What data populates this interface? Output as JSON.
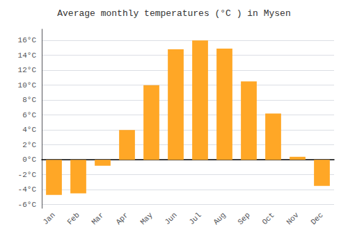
{
  "chart_data": {
    "type": "bar",
    "title": "Average monthly temperatures (°C ) in Mysen",
    "categories": [
      "Jan",
      "Feb",
      "Mar",
      "Apr",
      "May",
      "Jun",
      "Jul",
      "Aug",
      "Sep",
      "Oct",
      "Nov",
      "Dec"
    ],
    "values": [
      -4.7,
      -4.5,
      -0.8,
      4.0,
      10.0,
      14.8,
      16.0,
      14.9,
      10.5,
      6.2,
      0.4,
      -3.5
    ],
    "color": "#FFA726",
    "ylim": [
      -6.5,
      17.5
    ],
    "yticks": [
      {
        "value": -6,
        "label": "-6°C"
      },
      {
        "value": -4,
        "label": "-4°C"
      },
      {
        "value": -2,
        "label": "-2°C"
      },
      {
        "value": 0,
        "label": "0°C"
      },
      {
        "value": 2,
        "label": "2°C"
      },
      {
        "value": 4,
        "label": "4°C"
      },
      {
        "value": 6,
        "label": "6°C"
      },
      {
        "value": 8,
        "label": "8°C"
      },
      {
        "value": 10,
        "label": "10°C"
      },
      {
        "value": 12,
        "label": "12°C"
      },
      {
        "value": 14,
        "label": "14°C"
      },
      {
        "value": 16,
        "label": "16°C"
      }
    ],
    "grid": true
  }
}
